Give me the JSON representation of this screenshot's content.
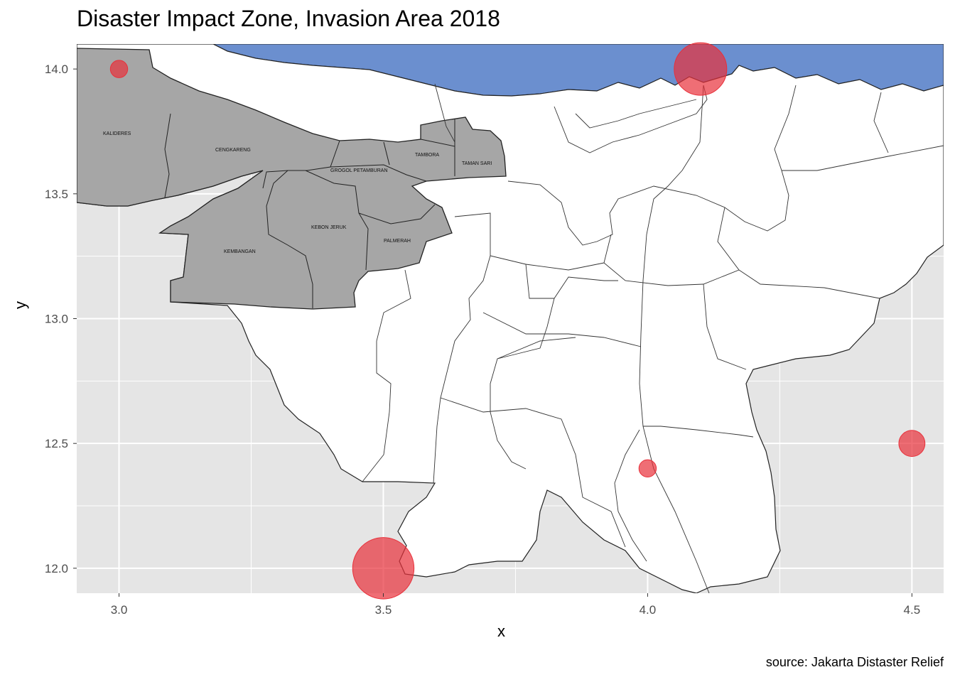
{
  "title": "Disaster Impact Zone, Invasion Area 2018",
  "caption": "source: Jakarta Distaster Relief",
  "colors": {
    "panel": "#e5e5e5",
    "grid": "#ffffff",
    "sea": "#6b8fcf",
    "impact_area": "#a6a6a6",
    "map_fill": "#ffffff",
    "outline": "#222222",
    "point": "#e8303a"
  },
  "chart_data": {
    "type": "scatter",
    "title": "Disaster Impact Zone, Invasion Area 2018",
    "xlabel": "x",
    "ylabel": "y",
    "xlim": [
      2.92,
      4.56
    ],
    "ylim": [
      11.9,
      14.1
    ],
    "x_ticks": [
      "3.0",
      "3.5",
      "4.0",
      "4.5"
    ],
    "y_ticks": [
      "12.0",
      "12.5",
      "13.0",
      "13.5",
      "14.0"
    ],
    "grid": true,
    "legend": "none",
    "points": [
      {
        "x": 3.0,
        "y": 14.0,
        "size": 1
      },
      {
        "x": 4.1,
        "y": 14.0,
        "size": 5
      },
      {
        "x": 4.5,
        "y": 12.5,
        "size": 2
      },
      {
        "x": 4.0,
        "y": 12.4,
        "size": 1
      },
      {
        "x": 3.5,
        "y": 12.0,
        "size": 6
      }
    ]
  },
  "districts": [
    "KALIDERES",
    "CENGKARENG",
    "TAMBORA",
    "TAMAN SARI",
    "GROGOL PETAMBURAN",
    "KEBON JERUK",
    "KEMBANGAN",
    "PALMERAH"
  ]
}
